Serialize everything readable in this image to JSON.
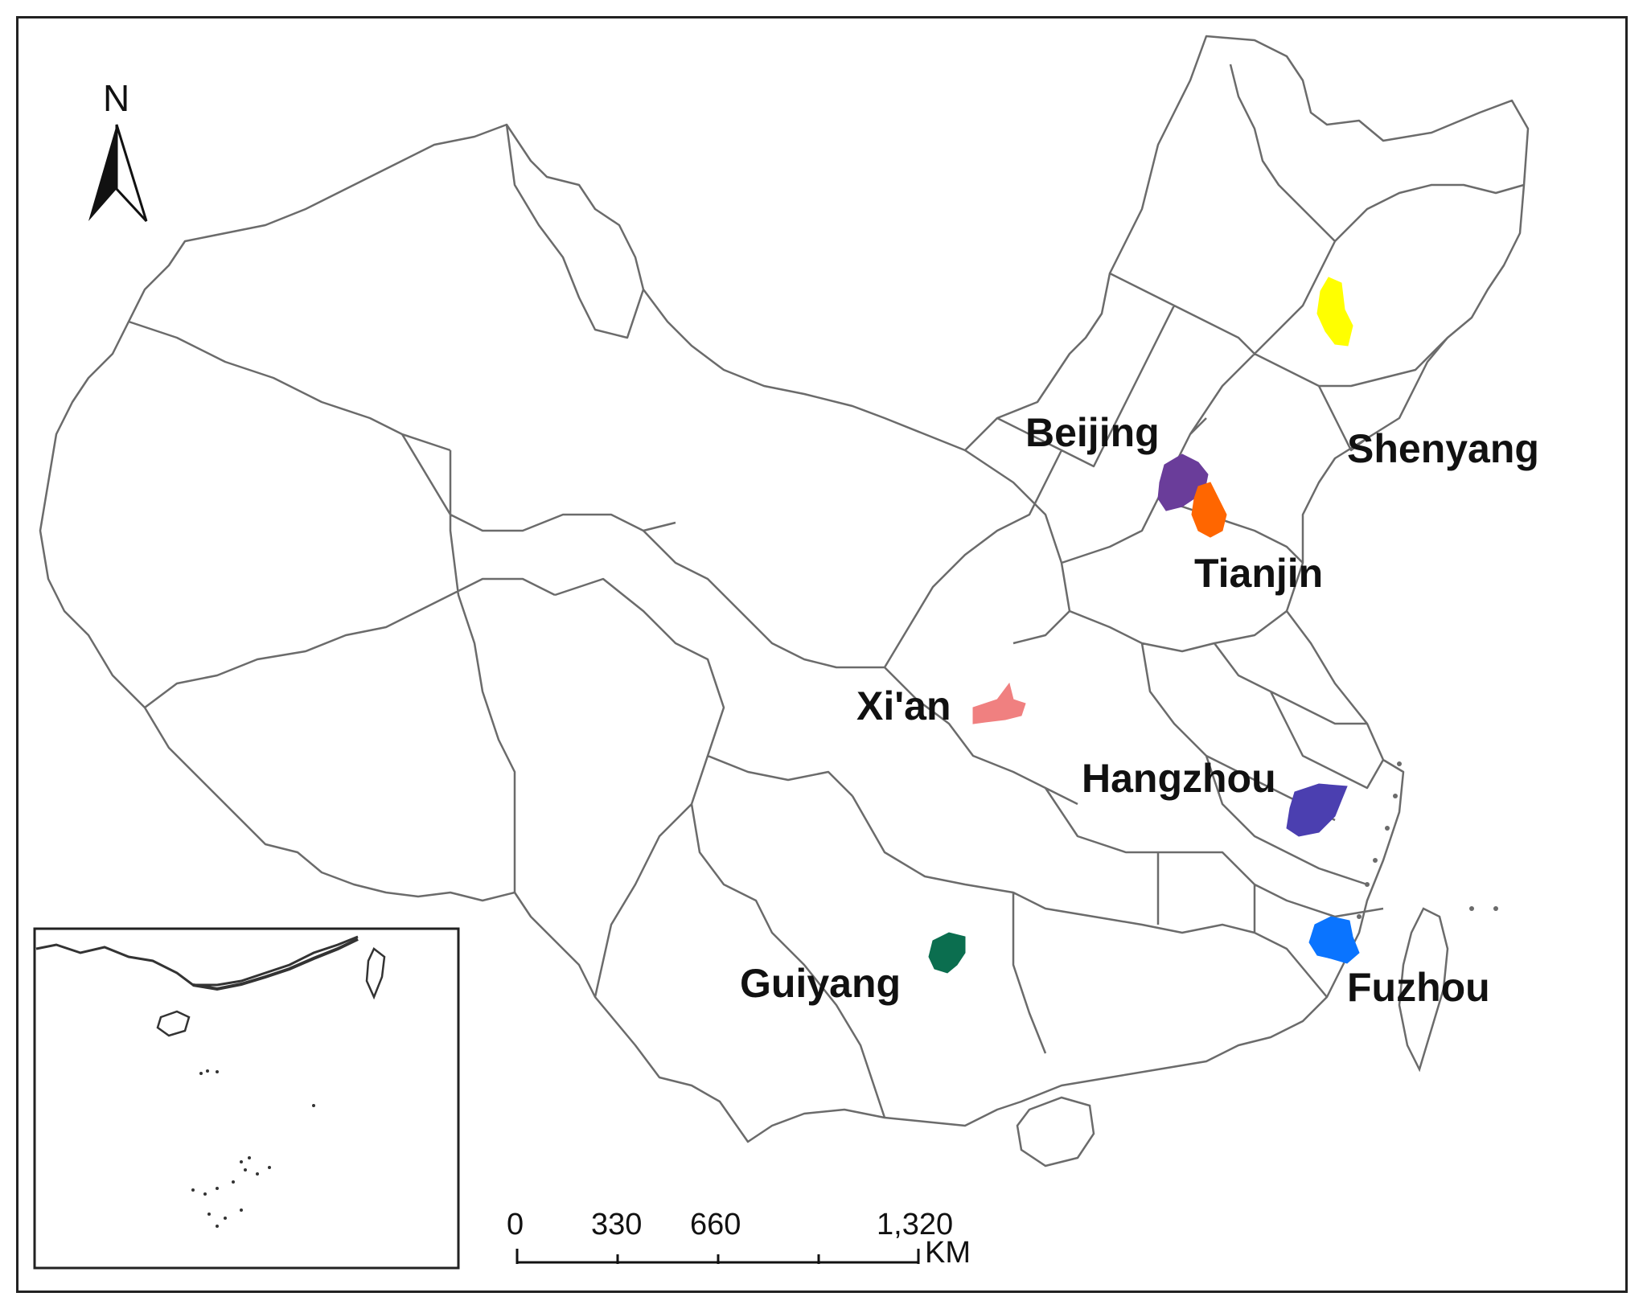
{
  "map": {
    "north_label": "N",
    "colors": {
      "boundary": "#6b6b6b",
      "frame": "#222222",
      "Shenyang": "#ffff00",
      "Beijing": "#6a3d9a",
      "Tianjin": "#ff6600",
      "Xi'an": "#f08080",
      "Hangzhou": "#4b3fb0",
      "Fuzhou": "#0a74ff",
      "Guiyang": "#0b6e4f"
    },
    "cities": [
      {
        "name": "Beijing",
        "color": "#6a3d9a"
      },
      {
        "name": "Tianjin",
        "color": "#ff6600"
      },
      {
        "name": "Shenyang",
        "color": "#ffff00"
      },
      {
        "name": "Xi'an",
        "color": "#f08080"
      },
      {
        "name": "Hangzhou",
        "color": "#4b3fb0"
      },
      {
        "name": "Fuzhou",
        "color": "#0a74ff"
      },
      {
        "name": "Guiyang",
        "color": "#0b6e4f"
      }
    ],
    "scale_bar": {
      "ticks": [
        "0",
        "330",
        "660",
        "1,320"
      ],
      "unit": "KM"
    }
  }
}
